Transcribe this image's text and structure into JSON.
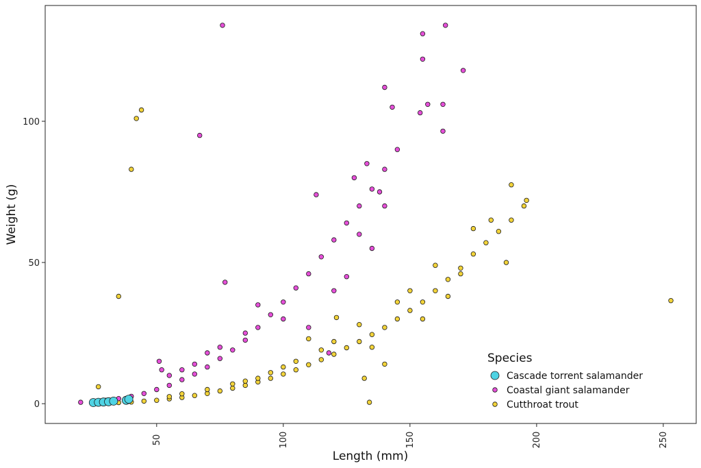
{
  "chart_data": {
    "type": "scatter",
    "title": "",
    "xlabel": "Length (mm)",
    "ylabel": "Weight (g)",
    "xlim": [
      6,
      263
    ],
    "ylim": [
      -7,
      141
    ],
    "xticks": [
      50,
      100,
      150,
      200,
      250
    ],
    "yticks": [
      0,
      50,
      100
    ],
    "grid": false,
    "legend": {
      "title": "Species",
      "position": "bottom-right"
    },
    "series": [
      {
        "name": "Cutthroat trout",
        "color": "#f2d33a",
        "marker_size": "small",
        "points": [
          [
            25,
            0.2
          ],
          [
            30,
            0.3
          ],
          [
            35,
            0.4
          ],
          [
            40,
            0.6
          ],
          [
            45,
            0.9
          ],
          [
            50,
            1.2
          ],
          [
            55,
            1.7
          ],
          [
            60,
            2.2
          ],
          [
            65,
            2.9
          ],
          [
            70,
            3.6
          ],
          [
            75,
            4.5
          ],
          [
            80,
            5.5
          ],
          [
            85,
            6.5
          ],
          [
            90,
            7.7
          ],
          [
            95,
            9
          ],
          [
            100,
            10.5
          ],
          [
            105,
            12
          ],
          [
            110,
            13.8
          ],
          [
            115,
            15.6
          ],
          [
            120,
            17.5
          ],
          [
            125,
            19.8
          ],
          [
            130,
            22
          ],
          [
            135,
            24.5
          ],
          [
            140,
            27
          ],
          [
            145,
            30
          ],
          [
            150,
            33
          ],
          [
            155,
            36
          ],
          [
            160,
            40
          ],
          [
            165,
            44
          ],
          [
            170,
            48
          ],
          [
            175,
            53
          ],
          [
            180,
            57
          ],
          [
            185,
            61
          ],
          [
            190,
            65
          ],
          [
            195,
            70
          ],
          [
            42,
            101
          ],
          [
            44,
            104
          ],
          [
            40,
            83
          ],
          [
            35,
            38
          ],
          [
            27,
            6
          ],
          [
            134,
            0.5
          ],
          [
            253,
            36.5
          ],
          [
            190,
            77.5
          ],
          [
            196,
            72
          ],
          [
            182,
            65
          ],
          [
            121,
            30.5
          ],
          [
            132,
            9
          ],
          [
            140,
            14
          ],
          [
            110,
            23
          ],
          [
            175,
            62
          ],
          [
            188,
            50
          ],
          [
            170,
            46
          ],
          [
            160,
            49
          ],
          [
            150,
            40
          ],
          [
            145,
            36
          ],
          [
            155,
            30
          ],
          [
            165,
            38
          ],
          [
            130,
            28
          ],
          [
            135,
            20
          ],
          [
            120,
            22
          ],
          [
            115,
            19
          ],
          [
            105,
            15
          ],
          [
            100,
            13
          ],
          [
            95,
            11
          ],
          [
            90,
            9
          ],
          [
            85,
            8
          ],
          [
            80,
            7
          ],
          [
            70,
            5
          ],
          [
            60,
            3.5
          ],
          [
            55,
            2.5
          ]
        ]
      },
      {
        "name": "Coastal giant salamander",
        "color": "#e54fd8",
        "marker_size": "small",
        "points": [
          [
            20,
            0.5
          ],
          [
            25,
            0.8
          ],
          [
            30,
            1.2
          ],
          [
            35,
            1.8
          ],
          [
            40,
            2.6
          ],
          [
            45,
            3.6
          ],
          [
            50,
            5
          ],
          [
            55,
            6.5
          ],
          [
            60,
            8.5
          ],
          [
            65,
            10.5
          ],
          [
            70,
            13
          ],
          [
            75,
            16
          ],
          [
            80,
            19
          ],
          [
            85,
            22.5
          ],
          [
            90,
            27
          ],
          [
            95,
            31.5
          ],
          [
            100,
            36
          ],
          [
            105,
            41
          ],
          [
            110,
            46
          ],
          [
            115,
            52
          ],
          [
            120,
            58
          ],
          [
            125,
            64
          ],
          [
            130,
            70
          ],
          [
            135,
            76
          ],
          [
            140,
            83
          ],
          [
            145,
            90
          ],
          [
            76,
            134
          ],
          [
            155,
            131
          ],
          [
            164,
            134
          ],
          [
            155,
            122
          ],
          [
            171,
            118
          ],
          [
            140,
            112
          ],
          [
            157,
            106
          ],
          [
            154,
            103
          ],
          [
            163,
            106
          ],
          [
            143,
            105
          ],
          [
            67,
            95
          ],
          [
            163,
            96.5
          ],
          [
            77,
            43
          ],
          [
            51,
            15
          ],
          [
            118,
            18
          ],
          [
            110,
            27
          ],
          [
            125,
            45
          ],
          [
            130,
            60
          ],
          [
            128,
            80
          ],
          [
            133,
            85
          ],
          [
            138,
            75
          ],
          [
            140,
            70
          ],
          [
            135,
            55
          ],
          [
            120,
            40
          ],
          [
            100,
            30
          ],
          [
            90,
            35
          ],
          [
            85,
            25
          ],
          [
            75,
            20
          ],
          [
            70,
            18
          ],
          [
            65,
            14
          ],
          [
            60,
            12
          ],
          [
            55,
            10
          ],
          [
            52,
            12
          ],
          [
            113,
            74
          ]
        ]
      },
      {
        "name": "Cascade torrent salamander",
        "color": "#4fd3e3",
        "marker_size": "large",
        "points": [
          [
            25,
            0.4
          ],
          [
            27,
            0.5
          ],
          [
            29,
            0.6
          ],
          [
            31,
            0.7
          ],
          [
            33,
            0.9
          ],
          [
            38,
            1.2
          ],
          [
            39,
            1.6
          ]
        ]
      }
    ]
  }
}
